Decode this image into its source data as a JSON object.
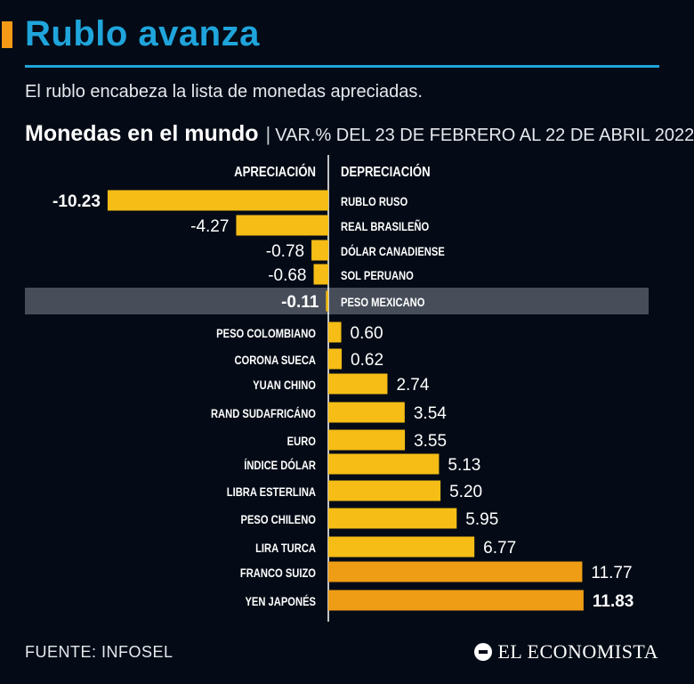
{
  "header": {
    "title": "Rublo avanza",
    "subtitle": "El rublo encabeza la lista de monedas apreciadas.",
    "chart_title": "Monedas en el mundo",
    "chart_subtitle": "VAR.% DEL 23 DE FEBRERO AL 22 DE ABRIL 2022"
  },
  "chart_data": {
    "type": "bar",
    "orientation": "horizontal",
    "title": "Monedas en el mundo",
    "subtitle": "VAR.% DEL 23 DE FEBRERO AL 22 DE ABRIL 2022",
    "left_label": "APRECIACIÓN",
    "right_label": "DEPRECIACIÓN",
    "categories": [
      "RUBLO RUSO",
      "REAL BRASILEÑO",
      "DÓLAR CANADIENSE",
      "SOL PERUANO",
      "PESO MEXICANO",
      "PESO COLOMBIANO",
      "CORONA SUECA",
      "YUAN CHINO",
      "RAND SUDAFRICÁNO",
      "EURO",
      "ÍNDICE DÓLAR",
      "LIBRA ESTERLINA",
      "PESO CHILENO",
      "LIRA TURCA",
      "FRANCO SUIZO",
      "YEN JAPONÉS"
    ],
    "values": [
      -10.23,
      -4.27,
      -0.78,
      -0.68,
      -0.11,
      0.6,
      0.62,
      2.74,
      3.54,
      3.55,
      5.13,
      5.2,
      5.95,
      6.77,
      11.77,
      11.83
    ],
    "value_labels": [
      "-10.23",
      "-4.27",
      "-0.78",
      "-0.68",
      "-0.11",
      "0.60",
      "0.62",
      "2.74",
      "3.54",
      "3.55",
      "5.13",
      "5.20",
      "5.95",
      "6.77",
      "11.77",
      "11.83"
    ],
    "highlight": "PESO MEXICANO",
    "colors": {
      "bar": "#f5bd16",
      "bar_high": "#ef9d15",
      "highlight_band": "#474e59",
      "divider": "#ffffff"
    }
  },
  "footer": {
    "source": "FUENTE: INFOSEL",
    "brand": "EL ECONOMISTA"
  }
}
